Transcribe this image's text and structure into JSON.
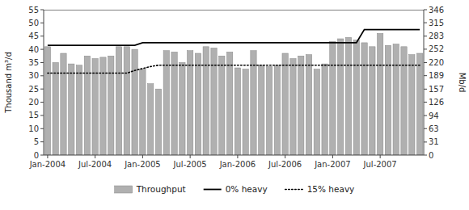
{
  "chart_data": {
    "type": "bar",
    "categories": [
      "Jan-2004",
      null,
      null,
      null,
      null,
      null,
      "Jul-2004",
      null,
      null,
      null,
      null,
      null,
      "Jan-2005",
      null,
      null,
      null,
      null,
      null,
      "Jul-2005",
      null,
      null,
      null,
      null,
      null,
      "Jan-2006",
      null,
      null,
      null,
      null,
      null,
      "Jul-2006",
      null,
      null,
      null,
      null,
      null,
      "Jan-2007",
      null,
      null,
      null,
      null,
      null,
      "Jul-2007",
      null,
      null,
      null,
      null,
      null
    ],
    "series": [
      {
        "name": "Throughput",
        "type": "bar",
        "color": "#b0b0b0",
        "values": [
          41.0,
          35.0,
          38.5,
          34.5,
          34.0,
          37.5,
          36.5,
          37.0,
          37.5,
          41.0,
          41.0,
          40.0,
          32.5,
          27.0,
          25.0,
          39.5,
          39.0,
          35.0,
          39.5,
          38.5,
          41.0,
          40.5,
          37.5,
          39.0,
          33.0,
          32.5,
          39.5,
          34.0,
          33.5,
          34.0,
          38.5,
          36.5,
          37.5,
          38.0,
          32.5,
          34.5,
          43.0,
          44.0,
          44.5,
          43.5,
          42.5,
          41.0,
          46.0,
          41.5,
          42.0,
          41.0,
          38.0,
          38.5
        ]
      },
      {
        "name": "0% heavy",
        "type": "line",
        "color": "#000000",
        "line_style": "solid",
        "x": [
          0,
          11,
          12,
          39,
          40,
          47
        ],
        "values": [
          41.5,
          41.5,
          42.5,
          42.5,
          47.5,
          47.5
        ]
      },
      {
        "name": "15% heavy",
        "type": "line",
        "color": "#000000",
        "line_style": "dotted",
        "x": [
          0,
          10,
          11,
          13,
          14,
          47
        ],
        "values": [
          31.0,
          31.0,
          32.0,
          33.5,
          34.0,
          34.0
        ]
      }
    ],
    "ylabel": "Thousand m³/d",
    "y2label": "Mb/d",
    "ylim": [
      0,
      55
    ],
    "yticks": [
      0,
      5,
      10,
      15,
      20,
      25,
      30,
      35,
      40,
      45,
      50,
      55
    ],
    "y2lim": [
      0,
      346
    ],
    "y2ticks": [
      0,
      31,
      63,
      94,
      126,
      157,
      189,
      220,
      252,
      283,
      315,
      346
    ],
    "hline": 55,
    "grid": false,
    "legend": "bottom"
  }
}
